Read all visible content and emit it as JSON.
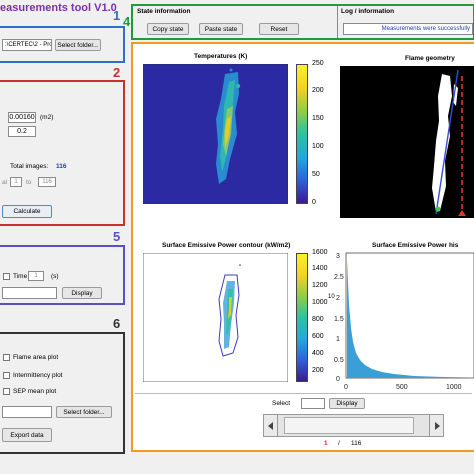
{
  "app": {
    "title": "easurements tool  V1.0"
  },
  "colors": {
    "panel1": "#2e6fc7",
    "panel2": "#c8322d",
    "panel3": "#f29a25",
    "panel4": "#1f9b3a",
    "panel5": "#5a4fc4",
    "panel6": "#333333",
    "version_text": "#7b2fa8"
  },
  "panel_numbers": {
    "p1": "1",
    "p2": "2",
    "p3": "3",
    "p4": "4",
    "p5": "5",
    "p6": "6"
  },
  "panel1": {
    "path_value": ":\\CERTEC\\2 - Pro",
    "select_folder": "Select folder..."
  },
  "panel2": {
    "area_value": "0.00160",
    "area_unit": "(m2)",
    "second_value": "0.2",
    "total_images_label": "Total images:",
    "total_images_value": "116",
    "interval_label": "al",
    "interval_from": "1",
    "interval_to_label": "to",
    "interval_to": "116",
    "calculate": "Calculate"
  },
  "panel5": {
    "time_label": "Time",
    "time_value": "1",
    "time_unit": "(s)",
    "display": "Display"
  },
  "panel6": {
    "flame_area": "Flame area plot",
    "intermittency": "Intermittency plot",
    "sep_mean": "SEP mean plot",
    "select_folder": "Select folder...",
    "export": "Export data"
  },
  "state": {
    "title": "State information",
    "copy": "Copy state",
    "paste": "Paste state",
    "reset": "Reset",
    "log_title": "Log / information",
    "log_text": "Measurements were successfully"
  },
  "plots": {
    "temperatures": {
      "title": "Temperatures (K)",
      "colorbar_ticks": [
        "250",
        "200",
        "150",
        "100",
        "50",
        "0"
      ]
    },
    "flame_geometry": {
      "title": "Flame geometry"
    },
    "sep_contour": {
      "title": "Surface Emissive Power contour (kW/m2)",
      "colorbar_ticks": [
        "1600",
        "1400",
        "1200",
        "1000",
        "800",
        "600",
        "400",
        "200"
      ]
    },
    "sep_hist": {
      "title": "Surface Emissive Power his",
      "y_ticks": [
        "3",
        "2.5",
        "2",
        "1.5",
        "1",
        "0.5",
        "0"
      ],
      "y_exp": "10",
      "x_ticks": [
        "0",
        "500",
        "1000"
      ]
    }
  },
  "nav": {
    "select_label": "Select",
    "display": "Display",
    "current_page": "1",
    "separator": "/",
    "total_pages": "116"
  }
}
